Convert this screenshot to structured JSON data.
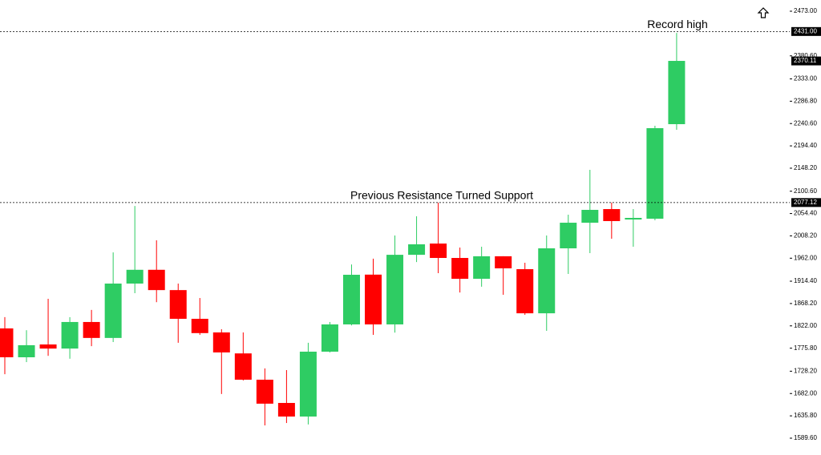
{
  "chart_data": {
    "type": "candlestick",
    "up_color": "#2ecc63",
    "down_color": "#ff0000",
    "ylim": [
      1554.8,
      2496.2
    ],
    "yticks": [
      {
        "value": 2473,
        "label": "2473.00"
      },
      {
        "value": 2380.6,
        "label": "2380.60"
      },
      {
        "value": 2333,
        "label": "2333.00"
      },
      {
        "value": 2286.8,
        "label": "2286.80"
      },
      {
        "value": 2240.6,
        "label": "2240.60"
      },
      {
        "value": 2194.4,
        "label": "2194.40"
      },
      {
        "value": 2148.2,
        "label": "2148.20"
      },
      {
        "value": 2100.6,
        "label": "2100.60"
      },
      {
        "value": 2054.4,
        "label": "2054.40"
      },
      {
        "value": 2008.2,
        "label": "2008.20"
      },
      {
        "value": 1962,
        "label": "1962.00"
      },
      {
        "value": 1914.4,
        "label": "1914.40"
      },
      {
        "value": 1868.2,
        "label": "1868.20"
      },
      {
        "value": 1822,
        "label": "1822.00"
      },
      {
        "value": 1775.8,
        "label": "1775.80"
      },
      {
        "value": 1728.2,
        "label": "1728.20"
      },
      {
        "value": 1682,
        "label": "1682.00"
      },
      {
        "value": 1635.8,
        "label": "1635.80"
      },
      {
        "value": 1589.6,
        "label": "1589.60"
      }
    ],
    "levels": [
      {
        "value": 2431,
        "label": "2431.00",
        "line": true,
        "text": "Record high"
      },
      {
        "value": 2370.11,
        "label": "2370.11",
        "line": false
      },
      {
        "value": 2077.12,
        "label": "2077.12",
        "line": true,
        "text": "Previous Resistance Turned Support"
      }
    ],
    "candles": [
      {
        "open": 1816.7,
        "high": 1840,
        "low": 1722,
        "close": 1757
      },
      {
        "open": 1757,
        "high": 1813,
        "low": 1747,
        "close": 1782
      },
      {
        "open": 1783.5,
        "high": 1878,
        "low": 1760,
        "close": 1775
      },
      {
        "open": 1775,
        "high": 1840,
        "low": 1754,
        "close": 1830
      },
      {
        "open": 1830,
        "high": 1855,
        "low": 1780,
        "close": 1797
      },
      {
        "open": 1797,
        "high": 1974,
        "low": 1788.5,
        "close": 1909.5
      },
      {
        "open": 1909.5,
        "high": 2070,
        "low": 1889.6,
        "close": 1938
      },
      {
        "open": 1938,
        "high": 1999,
        "low": 1871,
        "close": 1896
      },
      {
        "open": 1896,
        "high": 1909.5,
        "low": 1787,
        "close": 1836.6
      },
      {
        "open": 1836.6,
        "high": 1879.6,
        "low": 1803.4,
        "close": 1807
      },
      {
        "open": 1808.4,
        "high": 1815,
        "low": 1681,
        "close": 1767
      },
      {
        "open": 1765,
        "high": 1808.4,
        "low": 1709,
        "close": 1710.6
      },
      {
        "open": 1710.6,
        "high": 1734,
        "low": 1616,
        "close": 1661
      },
      {
        "open": 1662.5,
        "high": 1730.5,
        "low": 1621,
        "close": 1634.4
      },
      {
        "open": 1634.4,
        "high": 1787,
        "low": 1618,
        "close": 1768.6
      },
      {
        "open": 1768.6,
        "high": 1830,
        "low": 1767,
        "close": 1825
      },
      {
        "open": 1825,
        "high": 1949,
        "low": 1823,
        "close": 1927.7
      },
      {
        "open": 1928,
        "high": 1961,
        "low": 1803.4,
        "close": 1825
      },
      {
        "open": 1825,
        "high": 2009,
        "low": 1808,
        "close": 1969
      },
      {
        "open": 1969,
        "high": 2048.7,
        "low": 1954,
        "close": 1990.7
      },
      {
        "open": 1992.3,
        "high": 2077,
        "low": 1931,
        "close": 1962.5
      },
      {
        "open": 1962.5,
        "high": 1984,
        "low": 1891,
        "close": 1919.4
      },
      {
        "open": 1919.4,
        "high": 1985.7,
        "low": 1903,
        "close": 1966
      },
      {
        "open": 1966,
        "high": 1966,
        "low": 1886.3,
        "close": 1941
      },
      {
        "open": 1939.3,
        "high": 1952.6,
        "low": 1844.8,
        "close": 1848
      },
      {
        "open": 1848,
        "high": 2009,
        "low": 1811.7,
        "close": 1982.4
      },
      {
        "open": 1982.4,
        "high": 2052,
        "low": 1929.4,
        "close": 2035.4
      },
      {
        "open": 2035.4,
        "high": 2144.8,
        "low": 1972.5,
        "close": 2062
      },
      {
        "open": 2063.6,
        "high": 2077,
        "low": 2002.3,
        "close": 2038.8
      },
      {
        "open": 2042,
        "high": 2063.6,
        "low": 1985.7,
        "close": 2045.4
      },
      {
        "open": 2043.7,
        "high": 2236,
        "low": 2040.4,
        "close": 2231
      },
      {
        "open": 2239.3,
        "high": 2428,
        "low": 2227.7,
        "close": 2370.2
      }
    ]
  }
}
